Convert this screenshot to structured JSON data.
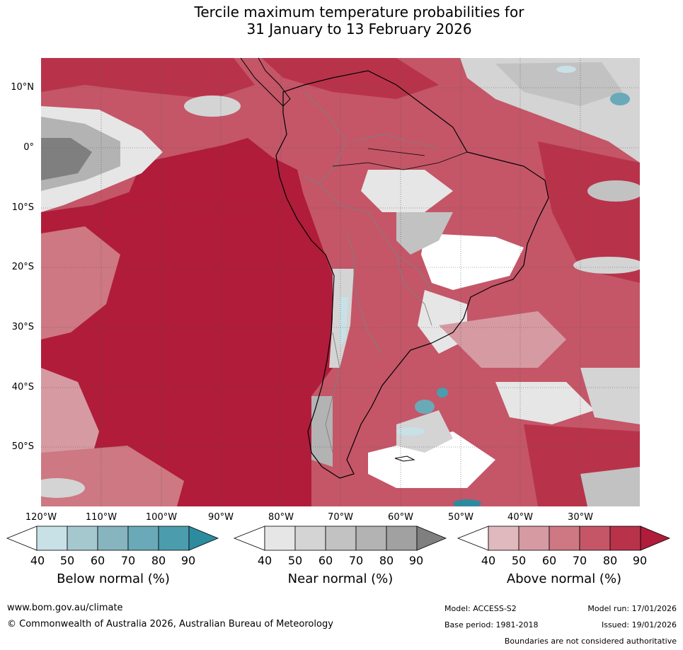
{
  "title": {
    "line1": "Tercile maximum temperature probabilities for",
    "line2": "31 January to 13 February 2026"
  },
  "map": {
    "lat_labels": [
      "10°N",
      "0°",
      "10°S",
      "20°S",
      "30°S",
      "40°S",
      "50°S"
    ],
    "lon_labels": [
      "120°W",
      "110°W",
      "100°W",
      "90°W",
      "80°W",
      "70°W",
      "60°W",
      "50°W",
      "40°W",
      "30°W"
    ],
    "colors": {
      "above": [
        "#e0b9be",
        "#d69aa2",
        "#cd7882",
        "#c45668",
        "#b8334a",
        "#b01c3a"
      ],
      "near": [
        "#e6e6e6",
        "#d4d4d4",
        "#c2c2c2",
        "#b3b3b3",
        "#a1a1a1",
        "#7f7f7f"
      ],
      "below": [
        "#c8e1e7",
        "#a5c8cf",
        "#86b4bf",
        "#6aa9b8",
        "#4b9dad",
        "#2d8b9f"
      ],
      "white": "#ffffff",
      "coast": "#000000",
      "border": "#7f7f7f"
    }
  },
  "colorbars": {
    "ticks": [
      "40",
      "50",
      "60",
      "70",
      "80",
      "90"
    ],
    "below": {
      "title": "Below normal (%)",
      "colors": [
        "#c8e1e7",
        "#a5c8cf",
        "#86b4bf",
        "#6aa9b8",
        "#4b9dad",
        "#2d8b9f"
      ]
    },
    "near": {
      "title": "Near normal (%)",
      "colors": [
        "#e6e6e6",
        "#d4d4d4",
        "#c2c2c2",
        "#b3b3b3",
        "#a1a1a1",
        "#7f7f7f"
      ]
    },
    "above": {
      "title": "Above normal (%)",
      "colors": [
        "#e0b9be",
        "#d69aa2",
        "#cd7882",
        "#c45668",
        "#b8334a",
        "#b01c3a"
      ]
    }
  },
  "footer": {
    "website": "www.bom.gov.au/climate",
    "copyright": "© Commonwealth of Australia 2026, Australian Bureau of Meteorology",
    "model": "Model: ACCESS-S2",
    "base_period": "Base period: 1981-2018",
    "model_run": "Model run: 17/01/2026",
    "issued": "Issued: 19/01/2026",
    "disclaimer": "Boundaries are not considered authoritative"
  }
}
